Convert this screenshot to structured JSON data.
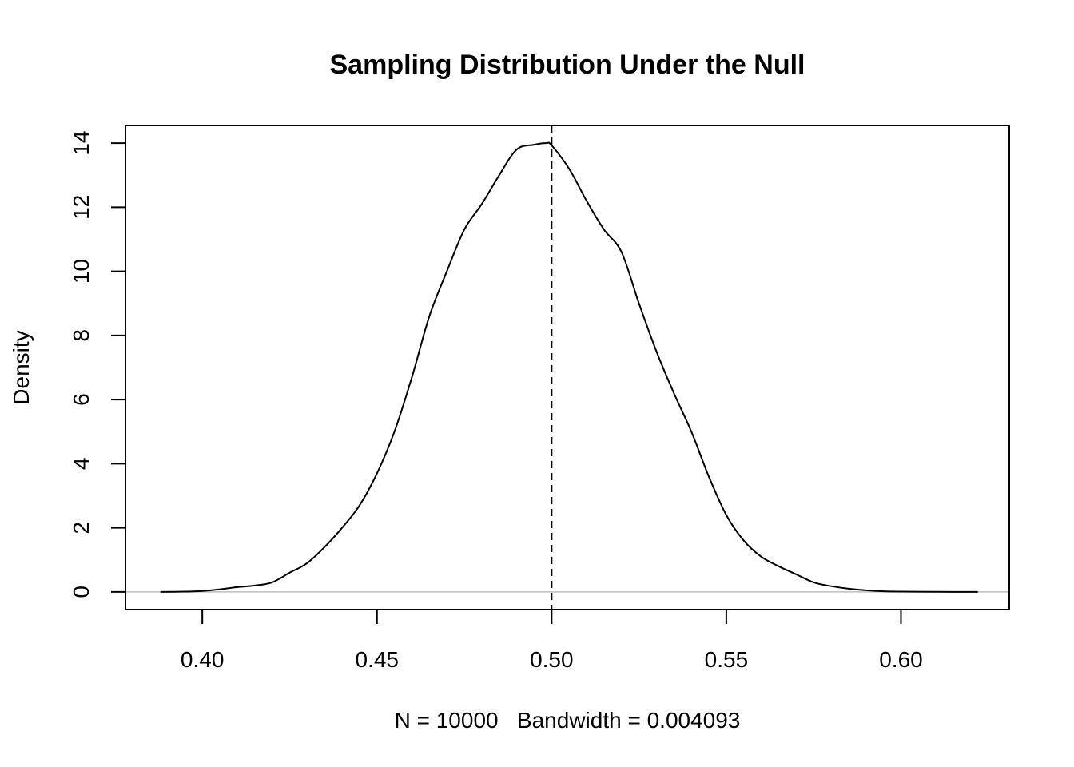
{
  "chart_data": {
    "type": "line",
    "title": "Sampling Distribution Under the Null",
    "xlabel": "N = 10000   Bandwidth = 0.004093",
    "ylabel": "Density",
    "xlim": [
      0.378,
      0.631
    ],
    "ylim": [
      -0.55,
      14.55
    ],
    "x_ticks": [
      0.4,
      0.45,
      0.5,
      0.55,
      0.6
    ],
    "x_tick_labels": [
      "0.40",
      "0.45",
      "0.50",
      "0.55",
      "0.60"
    ],
    "y_ticks": [
      0,
      2,
      4,
      6,
      8,
      10,
      12,
      14
    ],
    "y_tick_labels": [
      "0",
      "2",
      "4",
      "6",
      "8",
      "10",
      "12",
      "14"
    ],
    "reference_lines": [
      {
        "orientation": "vertical",
        "x": 0.5,
        "style": "dashed",
        "color": "#000000"
      },
      {
        "orientation": "horizontal",
        "y": 0,
        "style": "solid",
        "color": "#bebebe"
      }
    ],
    "grid": false,
    "legend": "none",
    "series": [
      {
        "color": "#000000",
        "x": [
          0.388,
          0.395,
          0.4,
          0.405,
          0.41,
          0.415,
          0.42,
          0.425,
          0.43,
          0.435,
          0.44,
          0.445,
          0.45,
          0.455,
          0.46,
          0.465,
          0.47,
          0.475,
          0.48,
          0.485,
          0.49,
          0.495,
          0.4985,
          0.5,
          0.505,
          0.51,
          0.515,
          0.52,
          0.525,
          0.53,
          0.535,
          0.54,
          0.545,
          0.55,
          0.555,
          0.56,
          0.565,
          0.57,
          0.575,
          0.58,
          0.585,
          0.59,
          0.595,
          0.6,
          0.61,
          0.622
        ],
        "y": [
          0.0,
          0.01,
          0.03,
          0.08,
          0.15,
          0.2,
          0.3,
          0.6,
          0.9,
          1.4,
          2.0,
          2.7,
          3.7,
          5.0,
          6.7,
          8.6,
          10.0,
          11.3,
          12.1,
          13.0,
          13.8,
          13.95,
          14.0,
          13.93,
          13.2,
          12.2,
          11.3,
          10.6,
          9.0,
          7.5,
          6.2,
          5.0,
          3.6,
          2.4,
          1.6,
          1.1,
          0.8,
          0.55,
          0.3,
          0.18,
          0.1,
          0.05,
          0.02,
          0.01,
          0.003,
          0.0
        ]
      }
    ]
  }
}
